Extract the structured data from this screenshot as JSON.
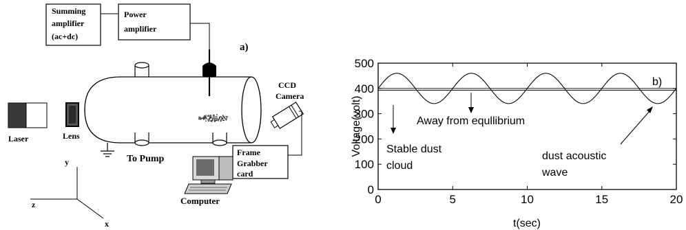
{
  "panel_a": {
    "label": "a)",
    "summing_amplifier": [
      "Summing",
      "amplifier",
      "(ac+dc)"
    ],
    "power_amplifier": [
      "Power",
      "amplifier"
    ],
    "ccd_camera": [
      "CCD",
      "Camera"
    ],
    "frame_grabber": [
      "Frame",
      "Grabber",
      "card"
    ],
    "laser": "Laser",
    "lens": "Lens",
    "to_pump": "To Pump",
    "computer": "Computer",
    "axis_y": "y",
    "axis_z": "z",
    "axis_x": "x"
  },
  "panel_b": {
    "label": "b)",
    "annotations": {
      "equilibrium": "Away from equllibrium",
      "stable_line1": "Stable dust",
      "stable_line2": "cloud",
      "wave_line1": "dust acoustic",
      "wave_line2": "wave"
    }
  },
  "chart_data": {
    "type": "line",
    "xlabel": "t(sec)",
    "ylabel": "Voltage(volt)",
    "xlim": [
      0,
      20
    ],
    "ylim": [
      0,
      500
    ],
    "xticks": [
      0,
      5,
      10,
      15,
      20
    ],
    "yticks": [
      0,
      100,
      200,
      300,
      400,
      500
    ],
    "grid": false,
    "series": [
      {
        "kind": "sine",
        "offset": 400,
        "amplitude": 60,
        "period": 5,
        "phase_t": 0
      },
      {
        "kind": "constant",
        "values": [
          393,
          400
        ]
      }
    ]
  }
}
